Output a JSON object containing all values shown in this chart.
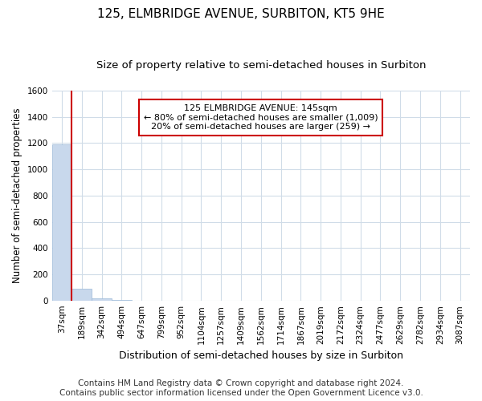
{
  "title": "125, ELMBRIDGE AVENUE, SURBITON, KT5 9HE",
  "subtitle": "Size of property relative to semi-detached houses in Surbiton",
  "xlabel": "Distribution of semi-detached houses by size in Surbiton",
  "ylabel": "Number of semi-detached properties",
  "footer_line1": "Contains HM Land Registry data © Crown copyright and database right 2024.",
  "footer_line2": "Contains public sector information licensed under the Open Government Licence v3.0.",
  "bar_labels": [
    "37sqm",
    "189sqm",
    "342sqm",
    "494sqm",
    "647sqm",
    "799sqm",
    "952sqm",
    "1104sqm",
    "1257sqm",
    "1409sqm",
    "1562sqm",
    "1714sqm",
    "1867sqm",
    "2019sqm",
    "2172sqm",
    "2324sqm",
    "2477sqm",
    "2629sqm",
    "2782sqm",
    "2934sqm",
    "3087sqm"
  ],
  "bar_values": [
    1190,
    90,
    20,
    5,
    3,
    2,
    1,
    1,
    1,
    1,
    1,
    0,
    0,
    0,
    0,
    0,
    0,
    0,
    0,
    0,
    0
  ],
  "bar_color": "#c8d8ec",
  "bar_edge_color": "#9ab8d8",
  "vline_index": 1,
  "vline_color": "#cc0000",
  "ylim": [
    0,
    1600
  ],
  "yticks": [
    0,
    200,
    400,
    600,
    800,
    1000,
    1200,
    1400,
    1600
  ],
  "annotation_line1": "125 ELMBRIDGE AVENUE: 145sqm",
  "annotation_line2": "← 80% of semi-detached houses are smaller (1,009)",
  "annotation_line3": "20% of semi-detached houses are larger (259) →",
  "annotation_box_facecolor": "#ffffff",
  "annotation_box_edgecolor": "#cc0000",
  "background_color": "#ffffff",
  "grid_color": "#d0dce8",
  "title_fontsize": 11,
  "subtitle_fontsize": 9.5,
  "axis_label_fontsize": 9,
  "tick_fontsize": 7.5,
  "footer_fontsize": 7.5,
  "ylabel_fontsize": 8.5
}
